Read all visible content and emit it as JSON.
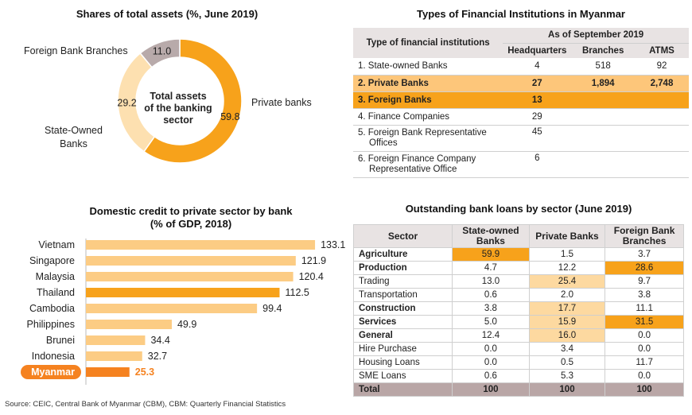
{
  "pie": {
    "title": "Shares of total assets (%, June 2019)",
    "center_line1": "Total assets",
    "center_line2": "of the banking",
    "center_line3": "sector",
    "label_fbb": "Foreign Bank Branches",
    "label_pb": "Private banks",
    "label_sob1": "State-Owned",
    "label_sob2": "Banks"
  },
  "institutions": {
    "title": "Types of Financial Institutions in Myanmar",
    "col_type": "Type of financial institutions",
    "col_group": "As of September 2019",
    "col_hq": "Headquarters",
    "col_br": "Branches",
    "col_atm": "ATMS",
    "rows": [
      {
        "name": "1. State-owned Banks",
        "hq": "4",
        "br": "518",
        "atm": "92"
      },
      {
        "name": "2. Private Banks",
        "hq": "27",
        "br": "1,894",
        "atm": "2,748"
      },
      {
        "name": "3. Foreign Banks",
        "hq": "13",
        "br": "",
        "atm": ""
      },
      {
        "name": "4. Finance Companies",
        "hq": "29",
        "br": "",
        "atm": ""
      },
      {
        "name": "5. Foreign Bank Representative",
        "name2": "Offices",
        "hq": "45",
        "br": "",
        "atm": ""
      },
      {
        "name": "6. Foreign Finance Company",
        "name2": "Representative Office",
        "hq": "6",
        "br": "",
        "atm": ""
      }
    ]
  },
  "credit": {
    "title1": "Domestic credit to private sector by bank",
    "title2": "(% of GDP, 2018)"
  },
  "loans": {
    "title": "Outstanding bank loans by sector (June 2019)",
    "col_sector": "Sector",
    "col_sob1": "State-owned",
    "col_sob2": "Banks",
    "col_pb": "Private Banks",
    "col_fbb1": "Foreign Bank",
    "col_fbb2": "Branches",
    "rows": [
      {
        "sector": "Agriculture",
        "sob": "59.9",
        "pb": "1.5",
        "fbb": "3.7"
      },
      {
        "sector": "Production",
        "sob": "4.7",
        "pb": "12.2",
        "fbb": "28.6"
      },
      {
        "sector": "Trading",
        "sob": "13.0",
        "pb": "25.4",
        "fbb": "9.7"
      },
      {
        "sector": "Transportation",
        "sob": "0.6",
        "pb": "2.0",
        "fbb": "3.8"
      },
      {
        "sector": "Construction",
        "sob": "3.8",
        "pb": "17.7",
        "fbb": "11.1"
      },
      {
        "sector": "Services",
        "sob": "5.0",
        "pb": "15.9",
        "fbb": "31.5"
      },
      {
        "sector": "General",
        "sob": "12.4",
        "pb": "16.0",
        "fbb": "0.0"
      },
      {
        "sector": "Hire Purchase",
        "sob": "0.0",
        "pb": "3.4",
        "fbb": "0.0"
      },
      {
        "sector": "Housing Loans",
        "sob": "0.0",
        "pb": "0.5",
        "fbb": "11.7"
      },
      {
        "sector": "SME Loans",
        "sob": "0.6",
        "pb": "5.3",
        "fbb": "0.0"
      },
      {
        "sector": "Total",
        "sob": "100",
        "pb": "100",
        "fbb": "100"
      }
    ]
  },
  "source": "Source: CEIC, Central Bank of Myanmar (CBM), CBM: Quarterly Financial Statistics",
  "colors": {
    "orange": "#f7a21b",
    "light_orange": "#fdd9a0",
    "gray": "#b8aaaa",
    "dark_orange": "#f58220"
  },
  "chart_data": [
    {
      "type": "pie",
      "title": "Shares of total assets (%, June 2019)",
      "categories": [
        "Private banks",
        "State-Owned Banks",
        "Foreign Bank Branches"
      ],
      "values": [
        59.8,
        29.2,
        11.0
      ],
      "colors": [
        "#f7a21b",
        "#fde0b0",
        "#b8aaaa"
      ]
    },
    {
      "type": "bar",
      "title": "Domestic credit to private sector by bank (% of GDP, 2018)",
      "categories": [
        "Vietnam",
        "Singapore",
        "Malaysia",
        "Thailand",
        "Cambodia",
        "Philippines",
        "Brunei",
        "Indonesia",
        "Myanmar"
      ],
      "values": [
        133.1,
        121.9,
        120.4,
        112.5,
        99.4,
        49.9,
        34.4,
        32.7,
        25.3
      ],
      "highlight": [
        "Thailand",
        "Myanmar"
      ],
      "xlim": [
        0,
        140
      ]
    }
  ]
}
